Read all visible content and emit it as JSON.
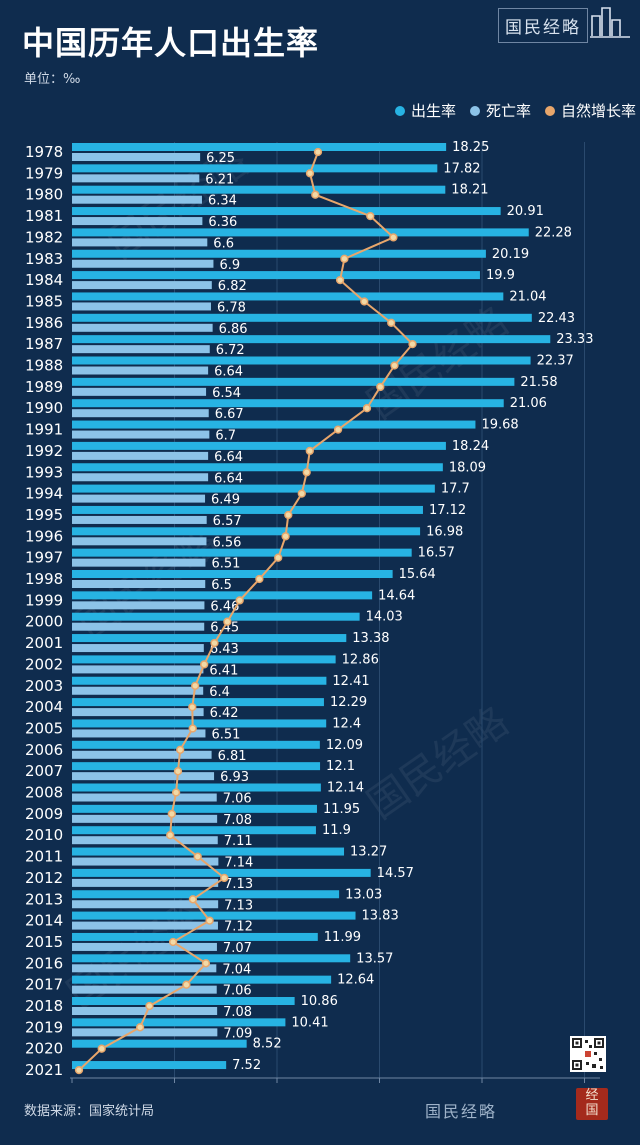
{
  "title": "中国历年人口出生率",
  "unit": "单位：‰",
  "brand": "国民经略",
  "source": "数据来源：国家统计局",
  "watermark_bottom": "国民经略",
  "seal_text": "经国",
  "colors": {
    "background": "#0f2c4e",
    "birth_rate": "#27b3e3",
    "death_rate": "#8cc3e8",
    "natural_growth": "#e8a66b",
    "growth_point_fill": "#f2d9a6"
  },
  "legend": [
    {
      "label": "出生率",
      "key": "birth_rate"
    },
    {
      "label": "死亡率",
      "key": "death_rate"
    },
    {
      "label": "自然增长率",
      "key": "natural_growth"
    }
  ],
  "chart_data": {
    "type": "bar",
    "orientation": "horizontal",
    "title": "中国历年人口出生率",
    "unit": "‰",
    "categories": [
      "1978",
      "1979",
      "1980",
      "1981",
      "1982",
      "1983",
      "1984",
      "1985",
      "1986",
      "1987",
      "1988",
      "1989",
      "1990",
      "1991",
      "1992",
      "1993",
      "1994",
      "1995",
      "1996",
      "1997",
      "1998",
      "1999",
      "2000",
      "2001",
      "2002",
      "2003",
      "2004",
      "2005",
      "2006",
      "2007",
      "2008",
      "2009",
      "2010",
      "2011",
      "2012",
      "2013",
      "2014",
      "2015",
      "2016",
      "2017",
      "2018",
      "2019",
      "2020",
      "2021"
    ],
    "series": [
      {
        "name": "出生率",
        "type": "bar",
        "values": [
          18.25,
          17.82,
          18.21,
          20.91,
          22.28,
          20.19,
          19.9,
          21.04,
          22.43,
          23.33,
          22.37,
          21.58,
          21.06,
          19.68,
          18.24,
          18.09,
          17.7,
          17.12,
          16.98,
          16.57,
          15.64,
          14.64,
          14.03,
          13.38,
          12.86,
          12.41,
          12.29,
          12.4,
          12.09,
          12.1,
          12.14,
          11.95,
          11.9,
          13.27,
          14.57,
          13.03,
          13.83,
          11.99,
          13.57,
          12.64,
          10.86,
          10.41,
          8.52,
          7.52
        ]
      },
      {
        "name": "死亡率",
        "type": "bar",
        "values": [
          6.25,
          6.21,
          6.34,
          6.36,
          6.6,
          6.9,
          6.82,
          6.78,
          6.86,
          6.72,
          6.64,
          6.54,
          6.67,
          6.7,
          6.64,
          6.64,
          6.49,
          6.57,
          6.56,
          6.51,
          6.5,
          6.46,
          6.45,
          6.43,
          6.41,
          6.4,
          6.42,
          6.51,
          6.81,
          6.93,
          7.06,
          7.08,
          7.11,
          7.14,
          7.13,
          7.13,
          7.12,
          7.07,
          7.04,
          7.06,
          7.08,
          7.09,
          null,
          null
        ]
      },
      {
        "name": "自然增长率",
        "type": "line",
        "values": [
          12.0,
          11.61,
          11.87,
          14.55,
          15.68,
          13.29,
          13.08,
          14.26,
          15.57,
          16.61,
          15.73,
          15.04,
          14.39,
          12.98,
          11.6,
          11.45,
          11.21,
          10.55,
          10.42,
          10.06,
          9.14,
          8.18,
          7.58,
          6.95,
          6.45,
          6.01,
          5.87,
          5.89,
          5.28,
          5.17,
          5.08,
          4.87,
          4.79,
          6.13,
          7.43,
          5.9,
          6.71,
          4.93,
          6.53,
          5.58,
          3.78,
          3.32,
          1.45,
          0.34
        ]
      }
    ],
    "xlim": [
      0,
      25
    ],
    "grid": true,
    "legend_position": "top-right"
  }
}
